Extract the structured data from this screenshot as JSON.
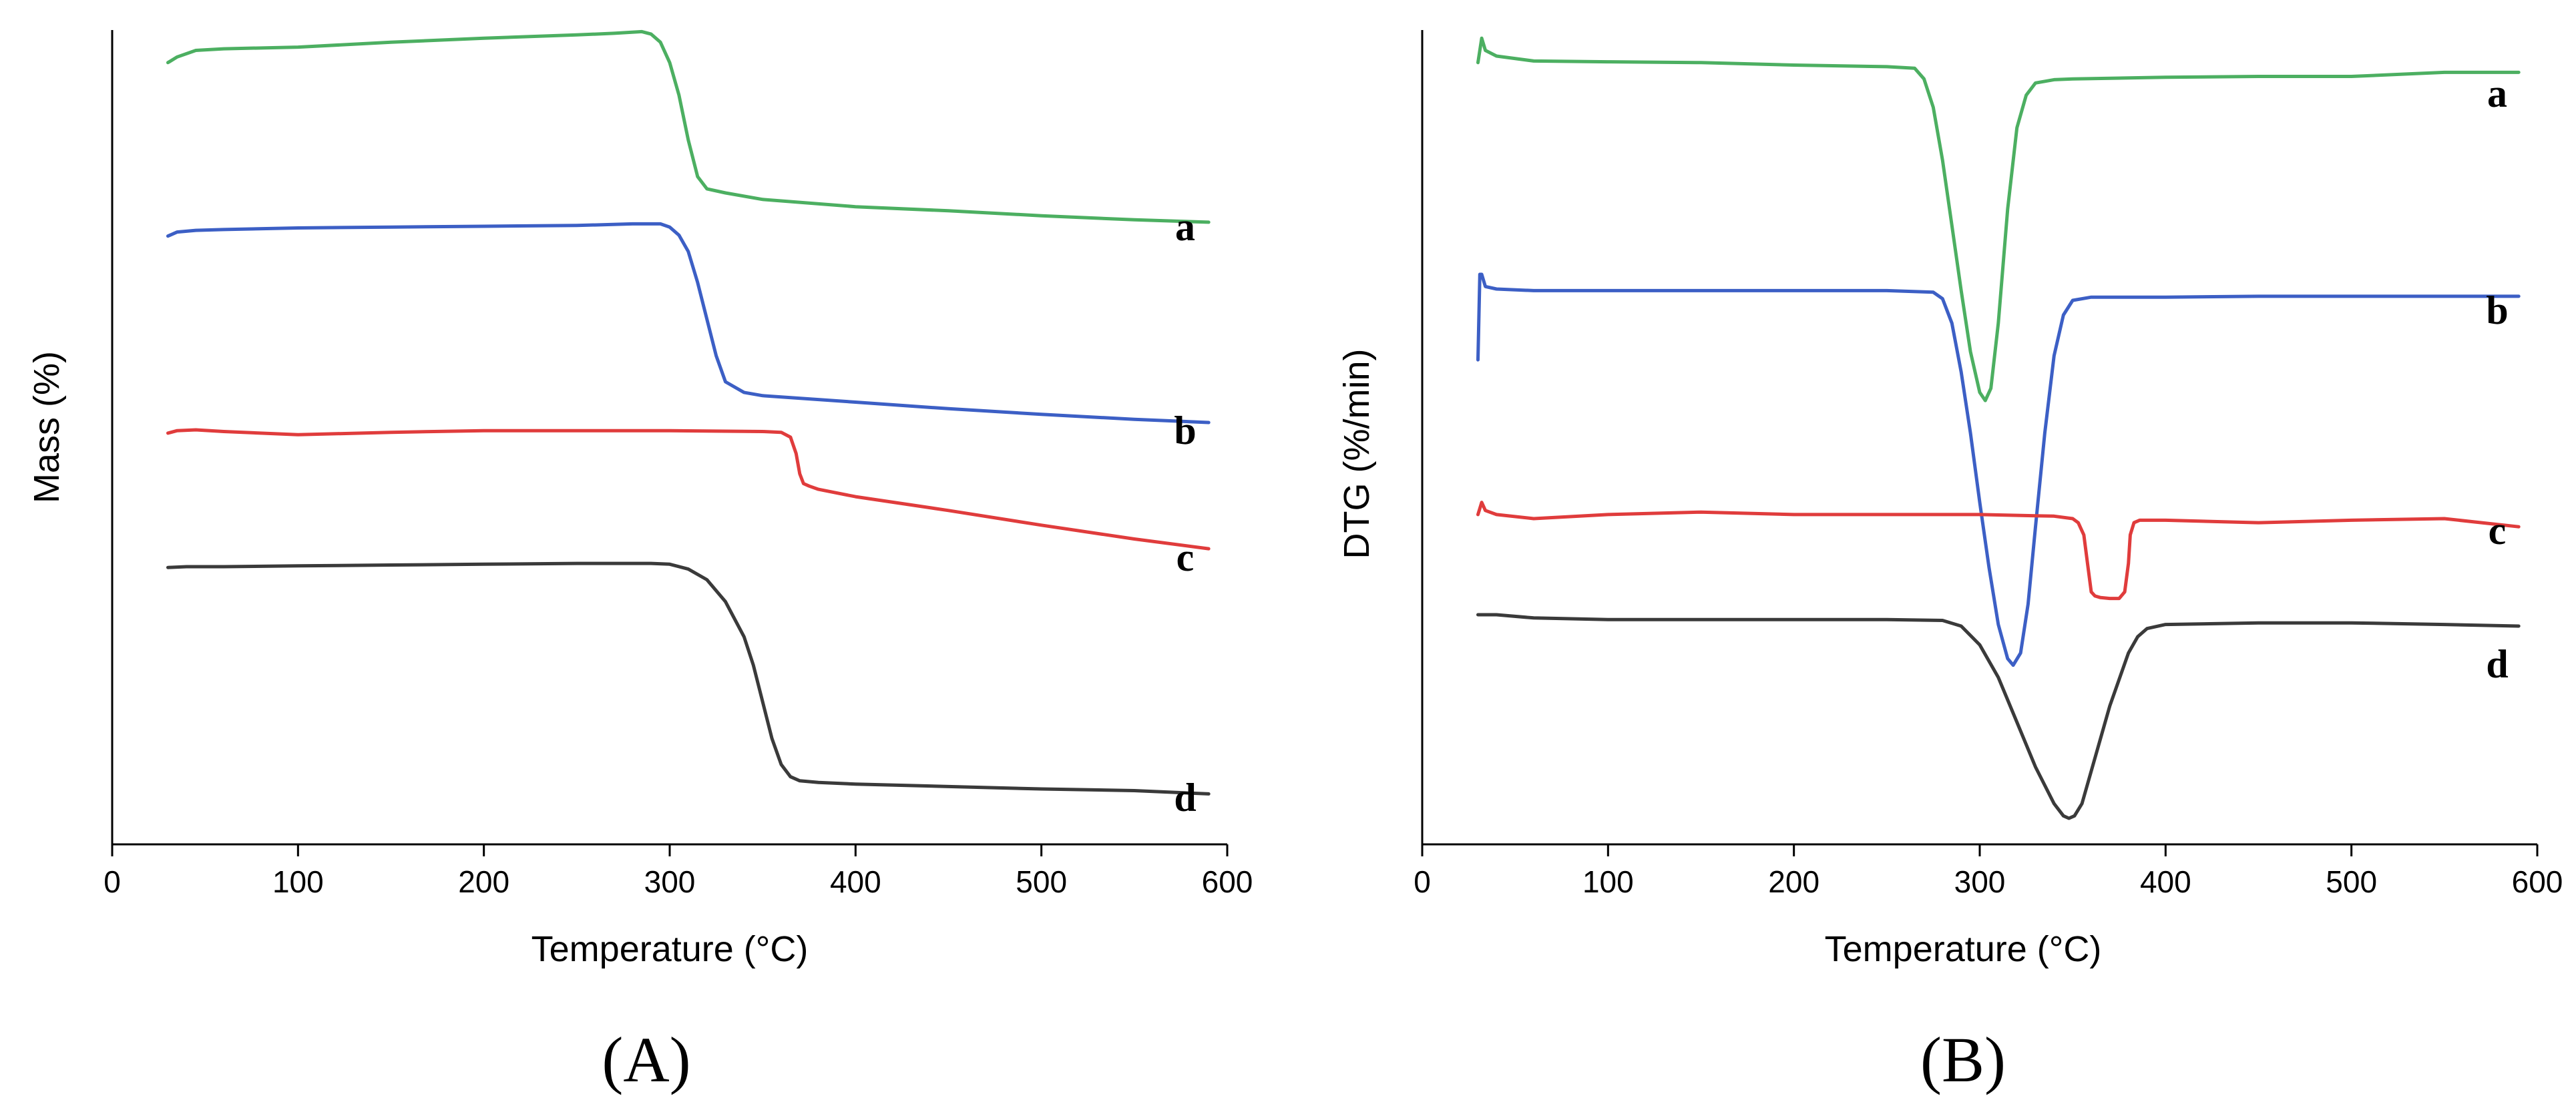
{
  "chart_data": [
    {
      "type": "line",
      "panel_label": "(A)",
      "xlabel": "Temperature (°C)",
      "ylabel": "Mass (%)",
      "xlim": [
        0,
        600
      ],
      "xticks": [
        0,
        100,
        200,
        300,
        400,
        500,
        600
      ],
      "ylim": [
        0,
        1
      ],
      "yticks_shown": false,
      "grid": false,
      "note": "Curves are vertically offset in arbitrary units (no y tick labels shown)",
      "series": [
        {
          "name": "a",
          "color": "#4caf61",
          "x": [
            30,
            35,
            45,
            60,
            100,
            150,
            200,
            250,
            270,
            285,
            290,
            295,
            300,
            305,
            310,
            315,
            320,
            330,
            350,
            400,
            450,
            500,
            550,
            590
          ],
          "y": [
            0.96,
            0.967,
            0.975,
            0.977,
            0.979,
            0.985,
            0.99,
            0.994,
            0.996,
            0.998,
            0.995,
            0.985,
            0.96,
            0.92,
            0.865,
            0.82,
            0.805,
            0.8,
            0.792,
            0.783,
            0.778,
            0.772,
            0.767,
            0.764
          ]
        },
        {
          "name": "b",
          "color": "#3c5fc5",
          "x": [
            30,
            35,
            45,
            60,
            100,
            150,
            200,
            250,
            280,
            295,
            300,
            305,
            310,
            315,
            320,
            325,
            330,
            340,
            350,
            400,
            450,
            500,
            550,
            590
          ],
          "y": [
            0.747,
            0.752,
            0.754,
            0.755,
            0.757,
            0.758,
            0.759,
            0.76,
            0.762,
            0.762,
            0.758,
            0.748,
            0.728,
            0.69,
            0.645,
            0.6,
            0.568,
            0.555,
            0.551,
            0.543,
            0.535,
            0.528,
            0.522,
            0.518
          ]
        },
        {
          "name": "c",
          "color": "#e03c3c",
          "x": [
            30,
            35,
            45,
            60,
            100,
            150,
            200,
            250,
            300,
            350,
            360,
            365,
            368,
            370,
            372,
            375,
            380,
            400,
            450,
            500,
            550,
            590
          ],
          "y": [
            0.505,
            0.508,
            0.509,
            0.507,
            0.503,
            0.506,
            0.508,
            0.508,
            0.508,
            0.507,
            0.506,
            0.5,
            0.48,
            0.455,
            0.443,
            0.44,
            0.436,
            0.427,
            0.41,
            0.392,
            0.375,
            0.363
          ]
        },
        {
          "name": "d",
          "color": "#3a3a3a",
          "x": [
            30,
            40,
            60,
            100,
            150,
            200,
            250,
            290,
            300,
            310,
            320,
            330,
            340,
            345,
            350,
            355,
            360,
            365,
            370,
            380,
            400,
            450,
            500,
            550,
            590
          ],
          "y": [
            0.34,
            0.341,
            0.341,
            0.342,
            0.343,
            0.344,
            0.345,
            0.345,
            0.344,
            0.338,
            0.325,
            0.298,
            0.255,
            0.22,
            0.175,
            0.13,
            0.098,
            0.083,
            0.078,
            0.076,
            0.074,
            0.071,
            0.068,
            0.066,
            0.062
          ]
        }
      ],
      "legend_labels": [
        "a",
        "b",
        "c",
        "d"
      ]
    },
    {
      "type": "line",
      "panel_label": "(B)",
      "xlabel": "Temperature (°C)",
      "ylabel": "DTG (%/min)",
      "xlim": [
        0,
        600
      ],
      "xticks": [
        0,
        100,
        200,
        300,
        400,
        500,
        600
      ],
      "ylim": [
        0,
        1
      ],
      "yticks_shown": false,
      "grid": false,
      "note": "Curves are vertically offset in arbitrary units (no y tick labels shown)",
      "series": [
        {
          "name": "a",
          "color": "#4caf61",
          "x": [
            30,
            32,
            34,
            40,
            60,
            100,
            150,
            200,
            250,
            265,
            270,
            275,
            280,
            285,
            290,
            295,
            300,
            303,
            306,
            310,
            315,
            320,
            325,
            330,
            340,
            350,
            400,
            450,
            500,
            550,
            590
          ],
          "y": [
            0.96,
            0.99,
            0.975,
            0.968,
            0.962,
            0.961,
            0.96,
            0.957,
            0.955,
            0.953,
            0.94,
            0.905,
            0.84,
            0.76,
            0.68,
            0.605,
            0.555,
            0.545,
            0.56,
            0.64,
            0.78,
            0.88,
            0.92,
            0.935,
            0.939,
            0.94,
            0.942,
            0.943,
            0.943,
            0.948,
            0.948
          ]
        },
        {
          "name": "b",
          "color": "#3c5fc5",
          "x": [
            30,
            31,
            32,
            34,
            40,
            60,
            100,
            150,
            200,
            250,
            275,
            280,
            285,
            290,
            295,
            300,
            305,
            310,
            315,
            318,
            322,
            326,
            330,
            335,
            340,
            345,
            350,
            360,
            400,
            450,
            500,
            550,
            590
          ],
          "y": [
            0.595,
            0.7,
            0.7,
            0.685,
            0.682,
            0.68,
            0.68,
            0.68,
            0.68,
            0.68,
            0.678,
            0.67,
            0.64,
            0.58,
            0.505,
            0.42,
            0.34,
            0.27,
            0.228,
            0.22,
            0.235,
            0.295,
            0.39,
            0.505,
            0.6,
            0.65,
            0.668,
            0.672,
            0.672,
            0.673,
            0.673,
            0.673,
            0.673
          ]
        },
        {
          "name": "c",
          "color": "#e03c3c",
          "x": [
            30,
            32,
            34,
            40,
            60,
            100,
            150,
            200,
            250,
            300,
            340,
            350,
            353,
            356,
            358,
            360,
            362,
            365,
            370,
            375,
            378,
            380,
            381,
            383,
            386,
            390,
            400,
            450,
            500,
            550,
            590
          ],
          "y": [
            0.405,
            0.42,
            0.41,
            0.405,
            0.4,
            0.405,
            0.408,
            0.405,
            0.405,
            0.405,
            0.403,
            0.4,
            0.395,
            0.38,
            0.345,
            0.31,
            0.305,
            0.303,
            0.302,
            0.302,
            0.31,
            0.345,
            0.38,
            0.395,
            0.398,
            0.398,
            0.398,
            0.395,
            0.398,
            0.4,
            0.39
          ]
        },
        {
          "name": "d",
          "color": "#3a3a3a",
          "x": [
            30,
            40,
            60,
            100,
            150,
            200,
            250,
            280,
            290,
            300,
            310,
            320,
            330,
            340,
            345,
            348,
            351,
            355,
            360,
            370,
            380,
            385,
            390,
            400,
            450,
            500,
            550,
            590
          ],
          "y": [
            0.282,
            0.282,
            0.278,
            0.276,
            0.276,
            0.276,
            0.276,
            0.275,
            0.268,
            0.245,
            0.205,
            0.15,
            0.095,
            0.05,
            0.035,
            0.032,
            0.035,
            0.05,
            0.09,
            0.17,
            0.235,
            0.255,
            0.265,
            0.27,
            0.272,
            0.272,
            0.27,
            0.268
          ]
        }
      ],
      "legend_labels": [
        "a",
        "b",
        "c",
        "d"
      ]
    }
  ]
}
